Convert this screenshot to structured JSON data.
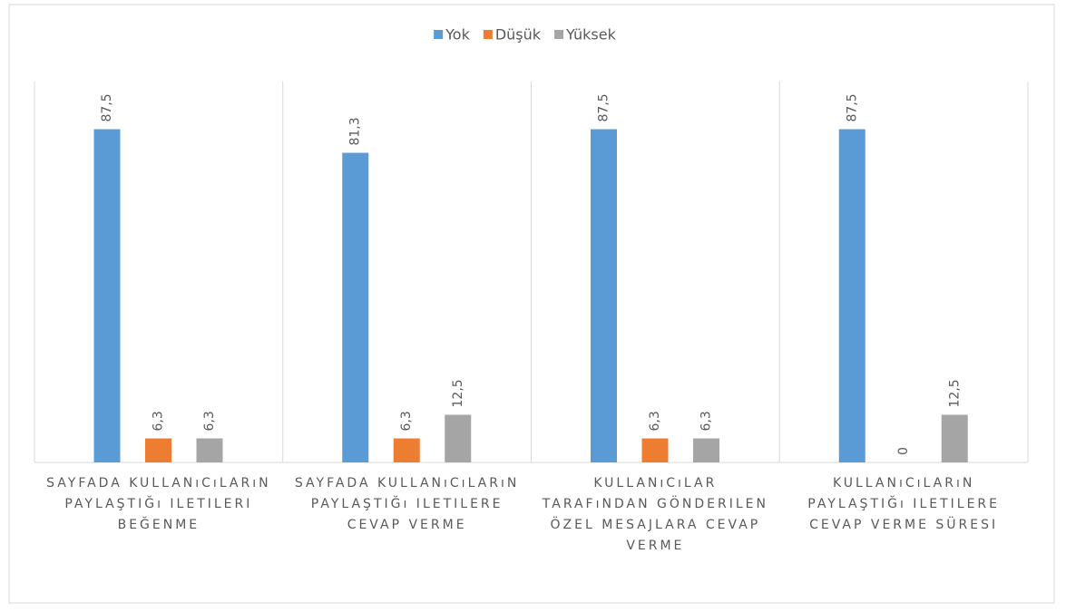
{
  "chart_data": {
    "type": "bar",
    "categories": [
      "SAYFADA KULLANıCıLARıN PAYLAŞTIĞı ILETILERI BEĞENME",
      "SAYFADA KULLANıCıLARıN PAYLAŞTIĞı ILETILERE CEVAP VERME",
      "KULLANıCıLAR TARAFıNDAN GÖNDERILEN ÖZEL MESAJLARA CEVAP VERME",
      "KULLANıCıLARıN PAYLAŞTIĞı ILETILERE CEVAP VERME SÜRESI"
    ],
    "series": [
      {
        "name": "Yok",
        "color": "#5b9bd5",
        "values": [
          87.5,
          81.3,
          87.5,
          87.5
        ],
        "value_labels": [
          "87,5",
          "81,3",
          "87,5",
          "87,5"
        ]
      },
      {
        "name": "Düşük",
        "color": "#ed7d31",
        "values": [
          6.3,
          6.3,
          6.3,
          0
        ],
        "value_labels": [
          "6,3",
          "6,3",
          "6,3",
          "0"
        ]
      },
      {
        "name": "Yüksek",
        "color": "#a5a5a5",
        "values": [
          6.3,
          12.5,
          6.3,
          12.5
        ],
        "value_labels": [
          "6,3",
          "12,5",
          "6,3",
          "12,5"
        ]
      }
    ],
    "ylim": [
      0,
      100
    ],
    "legend": "top"
  }
}
